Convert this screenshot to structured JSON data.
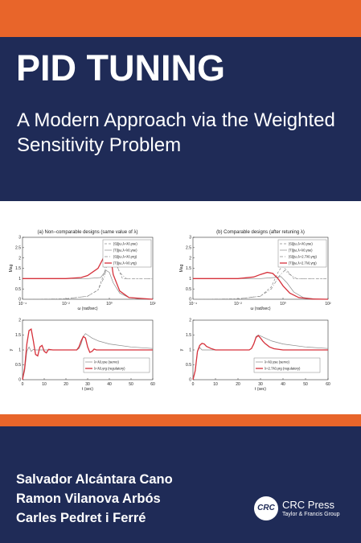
{
  "cover": {
    "title": "PID TUNING",
    "subtitle": "A Modern Approach via the Weighted Sensitivity Problem",
    "authors": [
      "Salvador Alcántara Cano",
      "Ramon Vilanova Arbós",
      "Carles Pedret i Ferré"
    ],
    "publisher": {
      "logo_text": "CRC",
      "name": "CRC Press",
      "tagline": "Taylor & Francis Group"
    },
    "colors": {
      "band": "#e8652a",
      "navy": "#1f2b57",
      "curve_red": "#d6313b",
      "curve_gray": "#8a8a8a"
    }
  },
  "chart_data": [
    {
      "type": "line",
      "panel": "top-left",
      "title": "(a) Non−comparable designs (same value of λ)",
      "xlabel": "ω (rad/sec)",
      "ylabel": "Mag",
      "xscale": "log",
      "xlim": [
        0.0001,
        100
      ],
      "ylim": [
        0,
        3
      ],
      "xticks": [
        "10⁻⁴",
        "10⁻²",
        "10⁰",
        "10²"
      ],
      "yticks": [
        "0",
        "0.5",
        "1",
        "1.5",
        "2",
        "2.5",
        "3"
      ],
      "legend": [
        "|S|(jω,λ=λ0,γse)",
        "|T|(jω,λ=λ0,γse)",
        "|S|(jω,λ=λ0,γrg)",
        "|T|(jω,λ=λ0,γrg)"
      ],
      "series": [
        {
          "name": "|S|(jω,λ=λ0,γse)",
          "style": "dashed",
          "color": "#8a8a8a",
          "x": [
            0.0001,
            0.001,
            0.01,
            0.1,
            0.3,
            0.6,
            0.9,
            1.5,
            2.5,
            4,
            7,
            15,
            100
          ],
          "y": [
            0,
            0.003,
            0.02,
            0.15,
            0.45,
            1.3,
            2.7,
            2.3,
            1.5,
            1.0,
            1.0,
            1.0,
            1.0
          ]
        },
        {
          "name": "|T|(jω,λ=λ0,γse)",
          "style": "solid",
          "color": "#8a8a8a",
          "x": [
            0.0001,
            0.01,
            0.1,
            0.4,
            0.7,
            1.0,
            1.5,
            3,
            8,
            30,
            100
          ],
          "y": [
            1.0,
            1.0,
            1.0,
            1.05,
            1.4,
            1.3,
            0.8,
            0.3,
            0.08,
            0.01,
            0.0
          ]
        },
        {
          "name": "|S|(jω,λ=λ0,γrg)",
          "style": "dashdot",
          "color": "#8a8a8a",
          "x": [
            0.0001,
            0.01,
            0.1,
            0.3,
            0.6,
            1.0,
            1.6,
            3,
            6,
            15,
            100
          ],
          "y": [
            0,
            0.02,
            0.15,
            0.45,
            1.1,
            2.2,
            2.0,
            1.3,
            1.0,
            1.0,
            1.0
          ]
        },
        {
          "name": "|T|(jω,λ=λ0,γrg)",
          "style": "solid",
          "color": "#d6313b",
          "x": [
            0.0001,
            0.01,
            0.05,
            0.1,
            0.3,
            0.6,
            0.9,
            1.1,
            1.5,
            3,
            8,
            100
          ],
          "y": [
            1.0,
            1.0,
            1.05,
            1.15,
            1.5,
            2.1,
            2.5,
            2.2,
            1.2,
            0.4,
            0.08,
            0.0
          ]
        }
      ]
    },
    {
      "type": "line",
      "panel": "top-right",
      "title": "(b) Comparable designs (after retuning λ)",
      "xlabel": "ω (rad/sec)",
      "ylabel": "Mag",
      "xscale": "log",
      "xlim": [
        0.0001,
        100
      ],
      "ylim": [
        0,
        3
      ],
      "xticks": [
        "10⁻⁴",
        "10⁻²",
        "10⁰",
        "10²"
      ],
      "yticks": [
        "0",
        "0.5",
        "1",
        "1.5",
        "2",
        "2.5",
        "3"
      ],
      "legend": [
        "|S|(jω,λ=λ0,γse)",
        "|T|(jω,λ=λ0,γse)",
        "|S|(jω,λ=2.7λ0,γrg)",
        "|T|(jω,λ=2.7λ0,γrg)"
      ],
      "series": [
        {
          "name": "|S|(jω,λ=λ0,γse)",
          "style": "dashed",
          "color": "#8a8a8a",
          "x": [
            0.0001,
            0.001,
            0.01,
            0.1,
            0.3,
            0.6,
            0.9,
            1.5,
            3,
            6,
            100
          ],
          "y": [
            0,
            0.003,
            0.02,
            0.15,
            0.6,
            1.3,
            1.6,
            1.4,
            1.0,
            1.0,
            1.0
          ]
        },
        {
          "name": "|T|(jω,λ=λ0,γse)",
          "style": "solid",
          "color": "#8a8a8a",
          "x": [
            0.0001,
            0.01,
            0.1,
            0.4,
            0.8,
            1.5,
            3,
            8,
            30,
            100
          ],
          "y": [
            1.0,
            1.0,
            1.0,
            1.05,
            1.1,
            0.8,
            0.35,
            0.08,
            0.01,
            0.0
          ]
        },
        {
          "name": "|S|(jω,λ=2.7λ0,γrg)",
          "style": "dashdot",
          "color": "#8a8a8a",
          "x": [
            0.0001,
            0.01,
            0.1,
            0.3,
            0.7,
            1.2,
            2,
            4,
            8,
            100
          ],
          "y": [
            0,
            0.02,
            0.15,
            0.5,
            1.15,
            1.4,
            1.2,
            1.0,
            1.0,
            1.0
          ]
        },
        {
          "name": "|T|(jω,λ=2.7λ0,γrg)",
          "style": "solid",
          "color": "#d6313b",
          "x": [
            0.0001,
            0.01,
            0.05,
            0.1,
            0.2,
            0.35,
            0.6,
            1.0,
            2,
            5,
            20,
            100
          ],
          "y": [
            1.0,
            1.0,
            1.08,
            1.2,
            1.3,
            1.25,
            1.0,
            0.65,
            0.3,
            0.08,
            0.01,
            0.0
          ]
        }
      ]
    },
    {
      "type": "line",
      "panel": "bottom-left",
      "xlabel": "t (sec)",
      "ylabel": "y",
      "xlim": [
        0,
        60
      ],
      "ylim": [
        0,
        2
      ],
      "xticks": [
        "0",
        "10",
        "20",
        "30",
        "40",
        "50",
        "60"
      ],
      "yticks": [
        "0",
        "0.5",
        "1",
        "1.5",
        "2"
      ],
      "legend": [
        "λ=λ0,γse (servo)",
        "λ=λ0,γrg (regulatory)"
      ],
      "series": [
        {
          "name": "λ=λ0,γse (servo)",
          "style": "solid",
          "color": "#8a8a8a",
          "x": [
            0,
            1,
            2,
            3,
            4,
            5,
            6,
            7,
            8,
            10,
            12,
            15,
            20,
            25,
            26,
            27,
            28,
            29,
            30,
            32,
            35,
            40,
            50,
            60
          ],
          "y": [
            0,
            0.3,
            0.95,
            1.1,
            0.95,
            1.02,
            1.0,
            1.0,
            1.0,
            1.0,
            1.0,
            1.0,
            1.0,
            1.0,
            1.05,
            1.2,
            1.45,
            1.55,
            1.5,
            1.4,
            1.3,
            1.2,
            1.1,
            1.05
          ]
        },
        {
          "name": "λ=λ0,γrg (regulatory)",
          "style": "solid",
          "color": "#d6313b",
          "x": [
            0,
            1,
            2,
            3,
            4,
            5,
            6,
            7,
            8,
            9,
            10,
            11,
            12,
            14,
            16,
            18,
            20,
            25,
            26,
            27,
            28,
            29,
            30,
            31,
            32,
            33,
            34,
            36,
            40,
            50,
            60
          ],
          "y": [
            0,
            0.4,
            1.2,
            1.65,
            1.7,
            1.3,
            0.85,
            0.8,
            1.1,
            1.15,
            0.95,
            0.9,
            1.02,
            1.0,
            1.0,
            1.0,
            1.0,
            1.0,
            1.1,
            1.3,
            1.45,
            1.4,
            1.1,
            0.92,
            0.95,
            1.03,
            1.0,
            1.0,
            1.0,
            1.0,
            1.0
          ]
        }
      ]
    },
    {
      "type": "line",
      "panel": "bottom-right",
      "xlabel": "t (sec)",
      "ylabel": "y",
      "xlim": [
        0,
        60
      ],
      "ylim": [
        0,
        2
      ],
      "xticks": [
        "0",
        "10",
        "20",
        "30",
        "40",
        "50",
        "60"
      ],
      "yticks": [
        "0",
        "0.5",
        "1",
        "1.5",
        "2"
      ],
      "legend": [
        "λ=λ0,γse (servo)",
        "λ=2.7λ0,γrg (regulatory)"
      ],
      "series": [
        {
          "name": "λ=λ0,γse (servo)",
          "style": "solid",
          "color": "#8a8a8a",
          "x": [
            0,
            1,
            2,
            3,
            4,
            5,
            6,
            8,
            10,
            15,
            20,
            25,
            26,
            27,
            28,
            29,
            30,
            32,
            35,
            40,
            50,
            60
          ],
          "y": [
            0,
            0.3,
            0.95,
            1.08,
            1.0,
            1.0,
            1.0,
            1.0,
            1.0,
            1.0,
            1.0,
            1.0,
            1.05,
            1.2,
            1.45,
            1.5,
            1.47,
            1.4,
            1.3,
            1.2,
            1.1,
            1.05
          ]
        },
        {
          "name": "λ=2.7λ0,γrg (regulatory)",
          "style": "solid",
          "color": "#d6313b",
          "x": [
            0,
            1,
            2,
            3,
            4,
            5,
            6,
            8,
            10,
            15,
            20,
            25,
            26,
            27,
            28,
            29,
            30,
            31,
            32,
            34,
            36,
            40,
            50,
            60
          ],
          "y": [
            0,
            0.3,
            0.95,
            1.15,
            1.22,
            1.2,
            1.12,
            1.05,
            1.0,
            1.0,
            1.0,
            1.0,
            1.05,
            1.2,
            1.42,
            1.48,
            1.4,
            1.3,
            1.22,
            1.1,
            1.04,
            1.0,
            1.0,
            1.0
          ]
        }
      ]
    }
  ]
}
